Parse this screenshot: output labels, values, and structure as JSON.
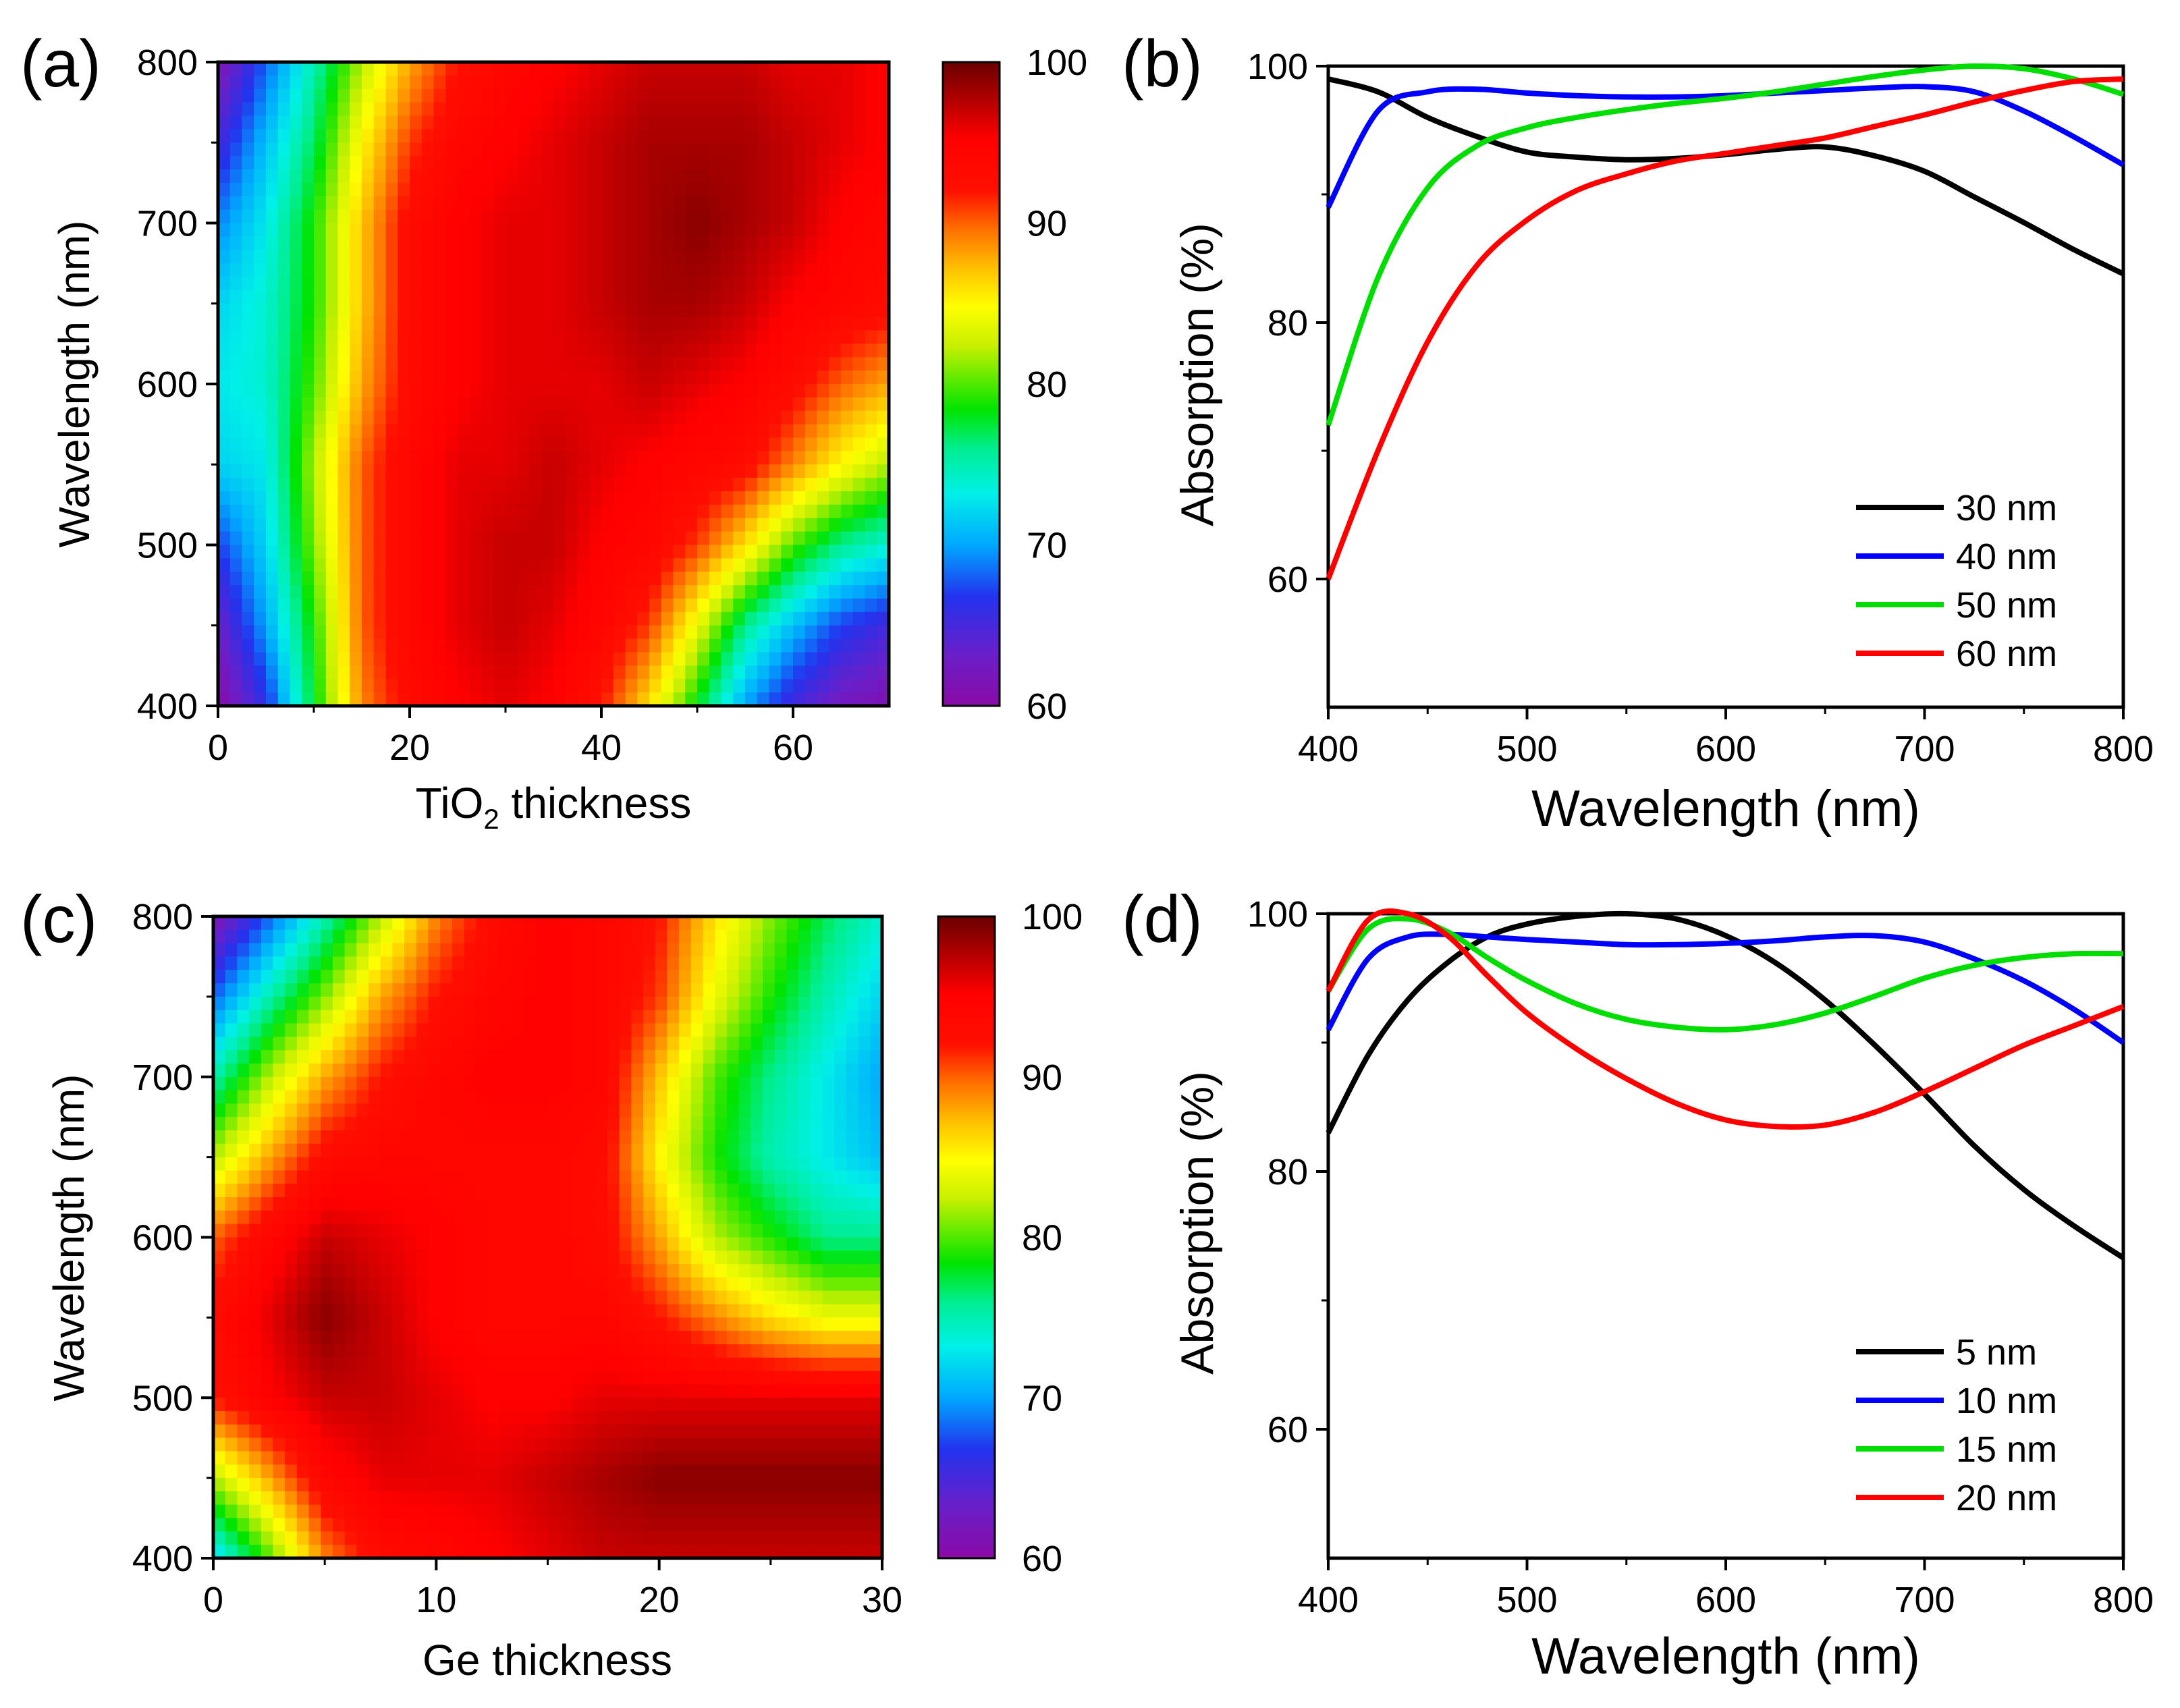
{
  "chart_data": [
    {
      "panel": "(a)",
      "type": "heatmap",
      "xlabel_main": "TiO",
      "xlabel_sub": "2",
      "xlabel_rest": " thickness",
      "ylabel": "Wavelength (nm)",
      "xlim": [
        0,
        70
      ],
      "ylim": [
        400,
        800
      ],
      "xticks": [
        "0",
        "20",
        "40",
        "60"
      ],
      "xtick_values": [
        0,
        20,
        40,
        60
      ],
      "yticks": [
        "400",
        "500",
        "600",
        "700",
        "800"
      ],
      "ytick_values": [
        400,
        500,
        600,
        700,
        800
      ],
      "colorbar": {
        "min": 60,
        "max": 100,
        "ticks": [
          "60",
          "70",
          "80",
          "90",
          "100"
        ],
        "tick_values": [
          60,
          70,
          80,
          90,
          100
        ]
      },
      "z_grid": {
        "x": [
          0,
          5,
          10,
          15,
          20,
          25,
          30,
          35,
          40,
          45,
          50,
          55,
          60,
          65,
          70
        ],
        "y": [
          400,
          450,
          500,
          550,
          600,
          650,
          700,
          750,
          800
        ],
        "z": [
          [
            60,
            66,
            78,
            89,
            93,
            95,
            96,
            95,
            92,
            86,
            78,
            70,
            65,
            62,
            61
          ],
          [
            63,
            70,
            79,
            90,
            94,
            96,
            97,
            96,
            94,
            91,
            84,
            76,
            71,
            67,
            65
          ],
          [
            67,
            72,
            81,
            90,
            94,
            96,
            97,
            97,
            95,
            94,
            91,
            86,
            80,
            76,
            74
          ],
          [
            72,
            73,
            82,
            90,
            94,
            96,
            96,
            97,
            96,
            95,
            94,
            93,
            89,
            85,
            82
          ],
          [
            73,
            74,
            80,
            88,
            93,
            95,
            96,
            96,
            96,
            97,
            96,
            95,
            93,
            90,
            88
          ],
          [
            72,
            74,
            79,
            87,
            93,
            95,
            96,
            96,
            97,
            98,
            98,
            97,
            95,
            94,
            93
          ],
          [
            69,
            73,
            79,
            87,
            93,
            95,
            96,
            96,
            97,
            98,
            99,
            98,
            97,
            95,
            94
          ],
          [
            65,
            71,
            77,
            85,
            91,
            94,
            95,
            96,
            97,
            98,
            98,
            98,
            97,
            96,
            95
          ],
          [
            61,
            68,
            75,
            82,
            88,
            92,
            94,
            95,
            96,
            97,
            97,
            97,
            96,
            96,
            95
          ]
        ]
      }
    },
    {
      "panel": "(b)",
      "type": "line",
      "xlabel": "Wavelength (nm)",
      "ylabel": "Absorption (%)",
      "xlim": [
        400,
        800
      ],
      "ylim": [
        50,
        100
      ],
      "xticks": [
        "400",
        "500",
        "600",
        "700",
        "800"
      ],
      "xtick_values": [
        400,
        500,
        600,
        700,
        800
      ],
      "yticks": [
        "60",
        "80",
        "100"
      ],
      "ytick_values": [
        60,
        80,
        100
      ],
      "legend_position": "bottom-right",
      "x": [
        400,
        425,
        450,
        475,
        500,
        525,
        550,
        575,
        600,
        625,
        650,
        675,
        700,
        725,
        750,
        775,
        800
      ],
      "series": [
        {
          "name": "30 nm",
          "color": "#000000",
          "values": [
            99,
            98,
            96,
            94.5,
            93.3,
            92.9,
            92.7,
            92.8,
            93.1,
            93.5,
            93.7,
            93.0,
            91.8,
            89.8,
            87.8,
            85.7,
            83.8
          ]
        },
        {
          "name": "40 nm",
          "color": "#0000ff",
          "values": [
            89,
            96.5,
            98,
            98.2,
            97.9,
            97.7,
            97.6,
            97.6,
            97.7,
            97.9,
            98.1,
            98.3,
            98.4,
            98.0,
            96.5,
            94.5,
            92.3
          ]
        },
        {
          "name": "50 nm",
          "color": "#00dd00",
          "values": [
            72,
            83.5,
            90.5,
            93.8,
            95.2,
            96.0,
            96.6,
            97.1,
            97.5,
            98.0,
            98.6,
            99.2,
            99.7,
            100,
            99.8,
            99.0,
            97.8
          ]
        },
        {
          "name": "60 nm",
          "color": "#ff0000",
          "values": [
            60,
            70,
            78.5,
            84.5,
            88,
            90.3,
            91.6,
            92.6,
            93.2,
            93.8,
            94.4,
            95.3,
            96.2,
            97.2,
            98.1,
            98.8,
            99.0
          ]
        }
      ]
    },
    {
      "panel": "(c)",
      "type": "heatmap",
      "xlabel": "Ge thickness",
      "ylabel": "Wavelength (nm)",
      "xlim": [
        0,
        30
      ],
      "ylim": [
        400,
        800
      ],
      "xticks": [
        "0",
        "10",
        "20",
        "30"
      ],
      "xtick_values": [
        0,
        10,
        20,
        30
      ],
      "yticks": [
        "400",
        "500",
        "600",
        "700",
        "800"
      ],
      "ytick_values": [
        400,
        500,
        600,
        700,
        800
      ],
      "colorbar": {
        "min": 60,
        "max": 100,
        "ticks": [
          "60",
          "70",
          "80",
          "90",
          "100"
        ],
        "tick_values": [
          60,
          70,
          80,
          90,
          100
        ]
      },
      "z_grid": {
        "x": [
          0,
          2.5,
          5,
          7.5,
          10,
          12.5,
          15,
          17.5,
          20,
          22.5,
          25,
          27.5,
          30
        ],
        "y": [
          400,
          450,
          500,
          550,
          600,
          650,
          700,
          750,
          800
        ],
        "z": [
          [
            72,
            80,
            89,
            93,
            94,
            95,
            96,
            97,
            97,
            97,
            97,
            97,
            97
          ],
          [
            82,
            88,
            94,
            96,
            96,
            96,
            97,
            98,
            99,
            99,
            99,
            99,
            99
          ],
          [
            92,
            95,
            97,
            97,
            96,
            95,
            95,
            96,
            96,
            96,
            96,
            96,
            96
          ],
          [
            93,
            96,
            99,
            97,
            95,
            94,
            94,
            94,
            92,
            89,
            86,
            84,
            84
          ],
          [
            90,
            94,
            97,
            96,
            95,
            94,
            94,
            93,
            88,
            82,
            79,
            76,
            76
          ],
          [
            82,
            88,
            93,
            94,
            94,
            94,
            94,
            93,
            85,
            79,
            75,
            73,
            71
          ],
          [
            75,
            82,
            88,
            92,
            94,
            95,
            95,
            94,
            87,
            80,
            76,
            73,
            70
          ],
          [
            68,
            75,
            81,
            88,
            92,
            94,
            95,
            94,
            91,
            84,
            79,
            75,
            72
          ],
          [
            61,
            68,
            75,
            82,
            89,
            93,
            95,
            94,
            92,
            86,
            81,
            77,
            74
          ]
        ]
      }
    },
    {
      "panel": "(d)",
      "type": "line",
      "xlabel": "Wavelength (nm)",
      "ylabel": "Absorption (%)",
      "xlim": [
        400,
        800
      ],
      "ylim": [
        50,
        100
      ],
      "xticks": [
        "400",
        "500",
        "600",
        "700",
        "800"
      ],
      "xtick_values": [
        400,
        500,
        600,
        700,
        800
      ],
      "yticks": [
        "60",
        "80",
        "100"
      ],
      "ytick_values": [
        60,
        80,
        100
      ],
      "legend_position": "bottom-right",
      "x": [
        400,
        420,
        440,
        460,
        480,
        500,
        525,
        550,
        575,
        600,
        625,
        650,
        675,
        700,
        725,
        750,
        775,
        800
      ],
      "series": [
        {
          "name": "5 nm",
          "color": "#000000",
          "values": [
            83,
            89,
            93.3,
            96.2,
            98.2,
            99.2,
            99.8,
            100,
            99.6,
            98.3,
            96.2,
            93.3,
            89.8,
            86.0,
            82.0,
            78.6,
            75.8,
            73.3
          ]
        },
        {
          "name": "10 nm",
          "color": "#0000ff",
          "values": [
            91,
            96.5,
            98.2,
            98.4,
            98.2,
            98.0,
            97.8,
            97.6,
            97.6,
            97.7,
            97.9,
            98.2,
            98.3,
            97.8,
            96.5,
            94.8,
            92.6,
            90.0
          ]
        },
        {
          "name": "15 nm",
          "color": "#00dd00",
          "values": [
            94,
            98.8,
            99.6,
            98.6,
            96.6,
            94.8,
            93.0,
            91.8,
            91.2,
            91.0,
            91.4,
            92.3,
            93.6,
            95.0,
            96.0,
            96.6,
            96.9,
            96.9
          ]
        },
        {
          "name": "20 nm",
          "color": "#ff0000",
          "values": [
            94,
            99.5,
            100,
            98.3,
            95.2,
            92.3,
            89.5,
            87.2,
            85.3,
            84.0,
            83.5,
            83.6,
            84.6,
            86.2,
            88.0,
            89.8,
            91.3,
            92.8
          ]
        }
      ]
    }
  ]
}
